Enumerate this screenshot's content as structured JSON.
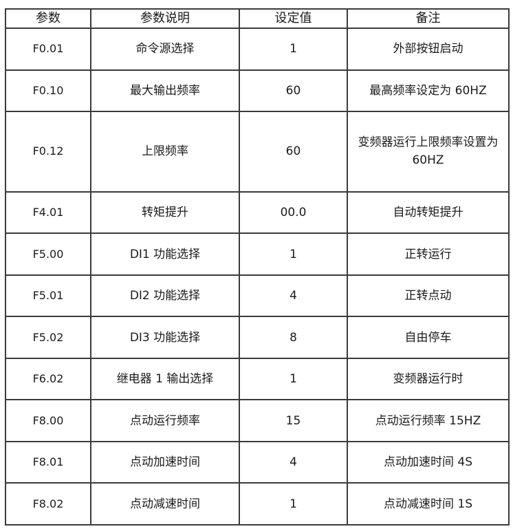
{
  "table": {
    "headers": [
      "参数",
      "参数说明",
      "设定值",
      "备注"
    ],
    "rows": [
      [
        "F0.01",
        "命令源选择",
        "1",
        "外部按钮启动"
      ],
      [
        "F0.10",
        "最大输出频率",
        "60",
        "最高频率设定为 60HZ"
      ],
      [
        "F0.12",
        "上限频率",
        "60",
        "变频器运行上限频率设置为 60HZ"
      ],
      [
        "F4.01",
        "转矩提升",
        "00.0",
        "自动转矩提升"
      ],
      [
        "F5.00",
        "DI1 功能选择",
        "1",
        "正转运行"
      ],
      [
        "F5.01",
        "DI2 功能选择",
        "4",
        "正转点动"
      ],
      [
        "F5.02",
        "DI3 功能选择",
        "8",
        "自由停车"
      ],
      [
        "F6.02",
        "继电器 1 输出选择",
        "1",
        "变频器运行时"
      ],
      [
        "F8.00",
        "点动运行频率",
        "15",
        "点动运行频率 15HZ"
      ],
      [
        "F8.01",
        "点动加速时间",
        "4",
        "点动加速时间 4S"
      ],
      [
        "F8.02",
        "点动减速时间",
        "1",
        "点动减速时间 1S"
      ]
    ]
  }
}
